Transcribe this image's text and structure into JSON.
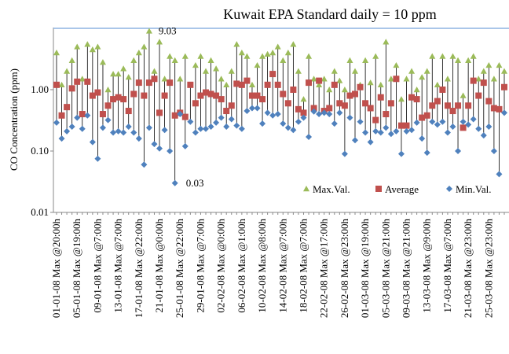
{
  "chart_data": {
    "type": "range-markers",
    "title": "Kuwait EPA Standard daily = 10 ppm",
    "y_label": "CO Concentration (ppm)",
    "log_scale": true,
    "ylim": [
      0.01,
      10
    ],
    "yticks": [
      {
        "value": 0.01,
        "label": "0.01"
      },
      {
        "value": 0.1,
        "label": "0.10"
      },
      {
        "value": 1,
        "label": "1.00"
      }
    ],
    "standard_line": {
      "value": 10,
      "color": "#8db3e2"
    },
    "range_line_color": "#000000",
    "legend_position": "lower right",
    "annotations": [
      "9.03",
      "0.03"
    ],
    "categories": [
      "01-01-08 Max @20:00h",
      null,
      null,
      null,
      "05-01-08 Max @19:00h",
      null,
      null,
      null,
      "09-01-08 Max @7:00h",
      null,
      null,
      null,
      "13-01-08 Max @7:00h",
      null,
      null,
      null,
      "17-01-08 Max @22:00h",
      null,
      null,
      null,
      "21-01-08 Max @0:00h",
      null,
      null,
      null,
      "25-01-08 Max @22:00h",
      null,
      null,
      null,
      "29-01-08 Max @7:00h",
      null,
      null,
      null,
      "02-02-08 Max @0:00h",
      null,
      null,
      null,
      "06-02-08 Max @1:00h",
      null,
      null,
      null,
      "10-02-08 Max @8:00h",
      null,
      null,
      null,
      "14-02-08 Max @7:00h",
      null,
      null,
      null,
      "18-02-08 Max @7:00h",
      null,
      null,
      null,
      "22-02-08 Max @17:00h",
      null,
      null,
      null,
      "26-02-08 Max @23:00h",
      null,
      null,
      null,
      "01-03-08 Max @19:00h",
      null,
      null,
      null,
      "05-03-08 Max @21:00h",
      null,
      null,
      null,
      "09-03-08 Max @21:00h",
      null,
      null,
      null,
      "13-03-08 Max @9:00h",
      null,
      null,
      null,
      "17-03-08 Max @7:00h",
      null,
      null,
      null,
      "21-03-08 Max @23:00h",
      null,
      null,
      null,
      "25-03-08 Max @23:00h",
      null,
      null,
      null
    ],
    "series": [
      {
        "name": "Max.Val.",
        "color": "#9bbb59",
        "marker": "triangle",
        "values": [
          4.0,
          1.2,
          2.0,
          3.0,
          5.0,
          1.5,
          5.5,
          4.5,
          5.0,
          2.8,
          1.0,
          1.8,
          1.8,
          2.2,
          1.6,
          3.0,
          4.0,
          5.0,
          9.03,
          2.0,
          6.0,
          1.5,
          3.5,
          3.0,
          1.5,
          3.5,
          1.2,
          2.5,
          3.5,
          2.0,
          3.0,
          2.2,
          1.5,
          1.2,
          2.0,
          5.5,
          4.0,
          3.5,
          1.2,
          2.5,
          3.5,
          3.8,
          4.0,
          5.0,
          3.0,
          4.0,
          5.5,
          2.0,
          0.7,
          3.5,
          1.5,
          1.2,
          1.5,
          1.0,
          2.0,
          1.4,
          1.0,
          3.0,
          2.0,
          1.2,
          3.0,
          1.3,
          3.5,
          1.2,
          6.0,
          1.5,
          2.5,
          0.7,
          1.5,
          2.0,
          1.0,
          1.6,
          2.0,
          3.5,
          1.2,
          3.5,
          1.5,
          3.5,
          3.0,
          0.8,
          3.0,
          3.5,
          1.5,
          2.0,
          2.5,
          1.5,
          2.5,
          2.0
        ]
      },
      {
        "name": "Average",
        "color": "#c0504d",
        "marker": "square",
        "values": [
          1.2,
          0.38,
          0.52,
          1.05,
          1.35,
          0.4,
          1.35,
          0.8,
          0.9,
          0.4,
          0.55,
          0.7,
          0.75,
          0.7,
          0.45,
          0.85,
          1.3,
          0.8,
          1.3,
          1.5,
          0.42,
          0.8,
          1.3,
          0.38,
          0.42,
          0.36,
          1.2,
          0.6,
          0.8,
          0.9,
          0.85,
          0.8,
          0.7,
          0.45,
          0.55,
          1.25,
          1.2,
          1.4,
          0.8,
          0.8,
          0.7,
          1.2,
          1.8,
          1.2,
          0.85,
          0.6,
          1.0,
          0.48,
          0.42,
          1.3,
          0.5,
          1.4,
          0.45,
          0.5,
          1.2,
          0.6,
          0.55,
          0.8,
          0.85,
          1.1,
          0.6,
          0.5,
          0.32,
          0.75,
          0.4,
          0.6,
          1.5,
          0.26,
          0.26,
          0.75,
          0.7,
          0.35,
          0.38,
          0.55,
          0.65,
          1.0,
          0.55,
          0.45,
          0.55,
          0.24,
          0.55,
          1.4,
          0.8,
          1.3,
          0.65,
          0.5,
          0.48,
          1.1
        ]
      },
      {
        "name": "Min.Val.",
        "color": "#4f81bd",
        "marker": "diamond",
        "values": [
          0.29,
          0.16,
          0.21,
          0.25,
          0.35,
          0.23,
          0.38,
          0.14,
          0.075,
          0.24,
          0.32,
          0.2,
          0.21,
          0.2,
          0.25,
          0.2,
          0.16,
          0.06,
          0.24,
          0.13,
          0.11,
          0.22,
          0.1,
          0.03,
          0.4,
          0.12,
          0.3,
          0.2,
          0.23,
          0.23,
          0.25,
          0.29,
          0.35,
          0.25,
          0.33,
          0.26,
          0.23,
          0.45,
          0.5,
          0.5,
          0.28,
          0.42,
          0.38,
          0.4,
          0.28,
          0.24,
          0.22,
          0.3,
          0.35,
          0.17,
          0.44,
          0.4,
          0.42,
          0.4,
          0.28,
          0.42,
          0.09,
          0.35,
          0.15,
          0.3,
          0.2,
          0.14,
          0.21,
          0.2,
          0.24,
          0.19,
          0.21,
          0.09,
          0.21,
          0.22,
          0.29,
          0.16,
          0.094,
          0.3,
          0.27,
          0.3,
          0.2,
          0.25,
          0.1,
          0.3,
          0.27,
          0.33,
          0.23,
          0.18,
          0.25,
          0.1,
          0.042,
          0.42
        ]
      }
    ]
  }
}
